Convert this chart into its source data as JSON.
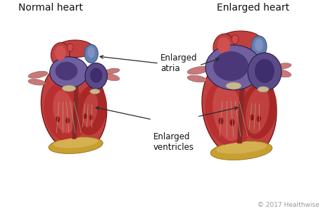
{
  "title_left": "Normal heart",
  "title_right": "Enlarged heart",
  "label_atria": "Enlarged\natria",
  "label_ventricles": "Enlarged\nventricles",
  "copyright": "© 2017 Healthwise",
  "bg_color": "#ffffff",
  "title_fontsize": 10,
  "label_fontsize": 8.5,
  "copyright_fontsize": 6.5,
  "heart_red": "#b83030",
  "heart_outer": "#c04040",
  "heart_pink_inner": "#d06060",
  "heart_light": "#cc5555",
  "atria_purple": "#7060a0",
  "atria_mid": "#5a4a88",
  "atria_dark": "#3e2e6e",
  "atria_inner": "#4a3878",
  "fat_yellow": "#c8a030",
  "fat_light": "#d4b050",
  "muscle_red": "#9a2020",
  "valve_cream": "#c8b890",
  "valve_light": "#ddd0b0",
  "line_color": "#2a2a2a",
  "blue_vessel": "#6080b0",
  "blue_dark": "#405080",
  "vessel_pink": "#c87878",
  "chordae": "#b0a878",
  "septum": "#882828"
}
